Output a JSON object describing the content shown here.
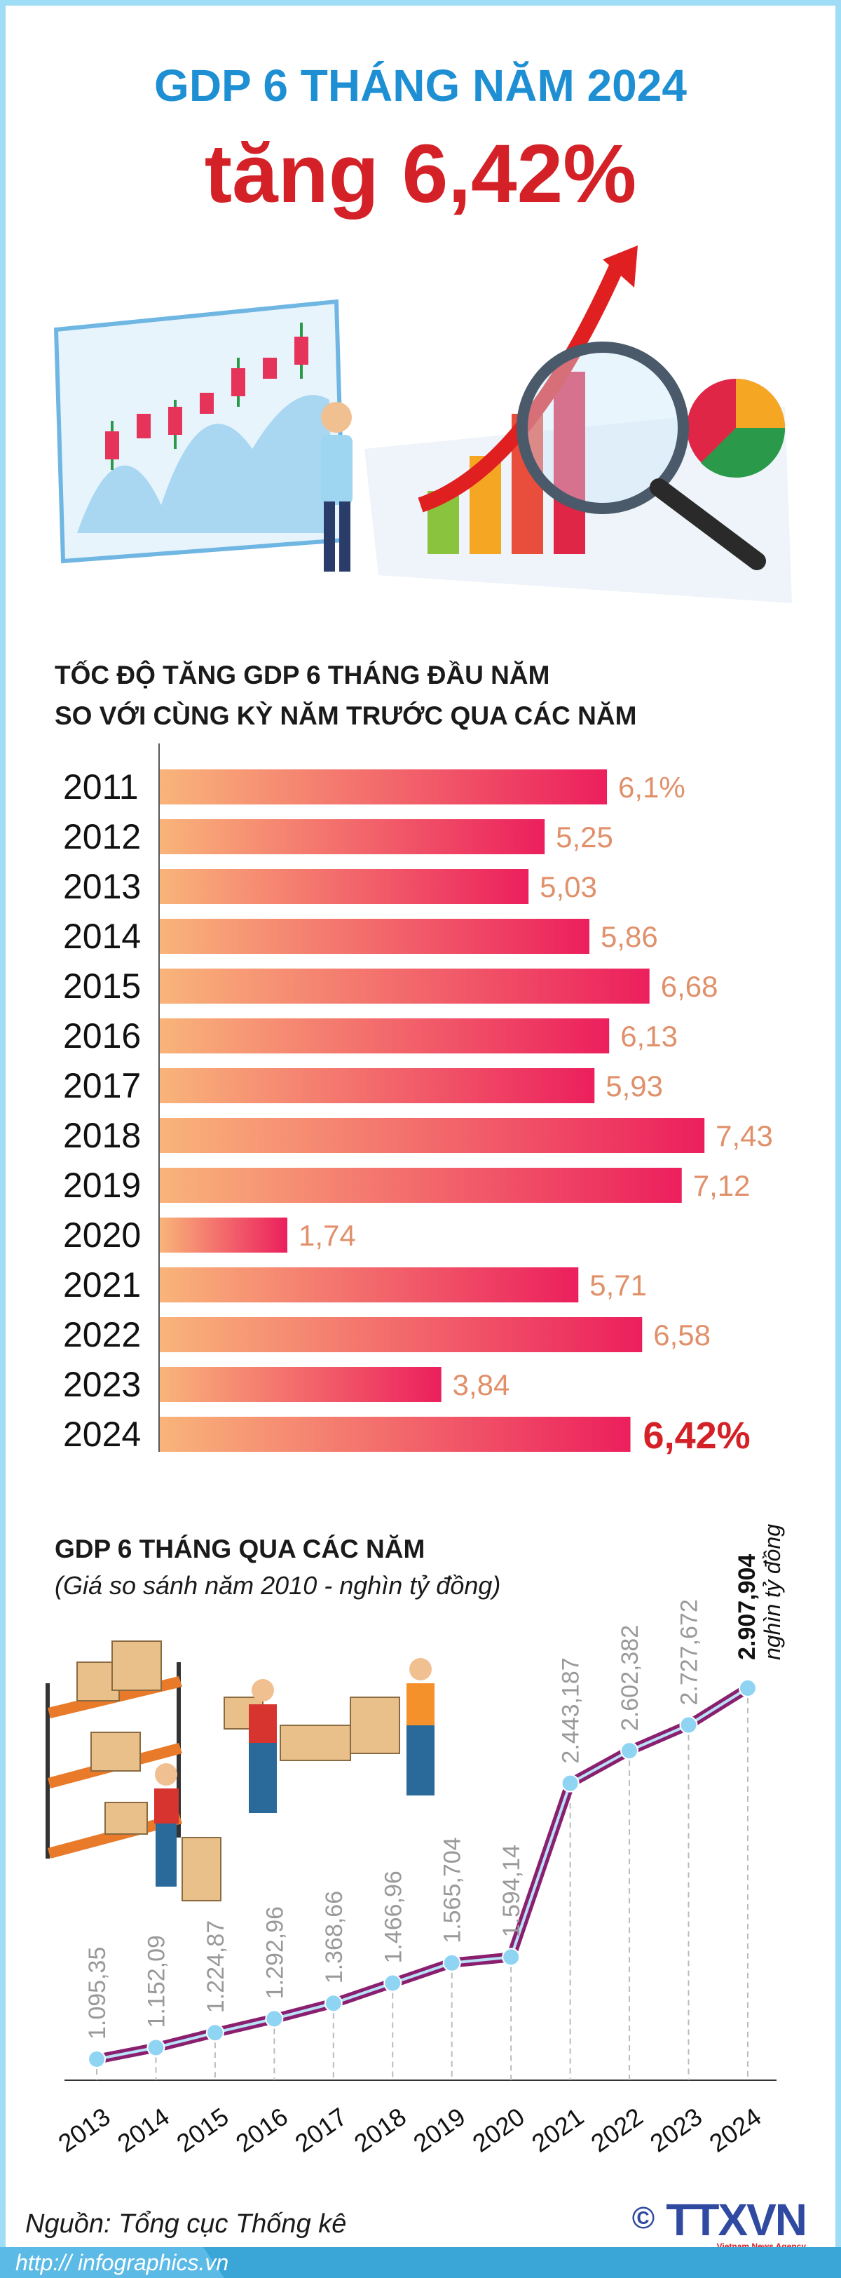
{
  "header": {
    "title": "GDP 6 THÁNG NĂM 2024",
    "headline": "tăng 6,42%"
  },
  "colors": {
    "title_blue": "#1e8fd3",
    "headline_red": "#d42127",
    "bar_start": "#f9b47a",
    "bar_end": "#ec1f5d",
    "value_label": "#e0906a",
    "line": "#8b1f6f",
    "marker": "#8fd4f2"
  },
  "illustration": {
    "icons": [
      "candlestick-chart-board-icon",
      "businessman-icon",
      "bar-chart-icon",
      "rising-arrow-icon",
      "magnifying-glass-icon",
      "pie-chart-icon",
      "warehouse-workers-icon"
    ]
  },
  "chart_data": [
    {
      "type": "bar",
      "orientation": "horizontal",
      "title": "TỐC ĐỘ TĂNG GDP 6 THÁNG ĐẦU NĂM",
      "subtitle": "SO VỚI CÙNG KỲ NĂM TRƯỚC QUA CÁC NĂM",
      "categories": [
        "2011",
        "2012",
        "2013",
        "2014",
        "2015",
        "2016",
        "2017",
        "2018",
        "2019",
        "2020",
        "2021",
        "2022",
        "2023",
        "2024"
      ],
      "values": [
        6.1,
        5.25,
        5.03,
        5.86,
        6.68,
        6.13,
        5.93,
        7.43,
        7.12,
        1.74,
        5.71,
        6.58,
        3.84,
        6.42
      ],
      "labels": [
        "6,1%",
        "5,25",
        "5,03",
        "5,86",
        "6,68",
        "6,13",
        "5,93",
        "7,43",
        "7,12",
        "1,74",
        "5,71",
        "6,58",
        "3,84",
        "6,42%"
      ],
      "unit": "%",
      "grid": false
    },
    {
      "type": "line",
      "title": "GDP 6 THÁNG QUA CÁC NĂM",
      "subtitle": "(Giá so sánh năm 2010 - nghìn tỷ đồng)",
      "x": [
        "2013",
        "2014",
        "2015",
        "2016",
        "2017",
        "2018",
        "2019",
        "2020",
        "2021",
        "2022",
        "2023",
        "2024"
      ],
      "values": [
        1095.35,
        1152.09,
        1224.87,
        1292.96,
        1368.66,
        1466.96,
        1565.704,
        1594.14,
        2443.187,
        2602.382,
        2727.672,
        2907.904
      ],
      "labels": [
        "1.095,35",
        "1.152,09",
        "1.224,87",
        "1.292,96",
        "1.368,66",
        "1.466,96",
        "1.565,704",
        "1.594,14",
        "2.443,187",
        "2.602,382",
        "2.727,672",
        "2.907,904"
      ],
      "last_unit": "nghìn tỷ đồng",
      "grid": false
    }
  ],
  "footer": {
    "source": "Nguồn: Tổng cục Thống kê",
    "url": "http:// infographics.vn",
    "logo": "TTXVN",
    "logo_copyright": "©",
    "logo_tagline": "Vietnam News Agency"
  }
}
